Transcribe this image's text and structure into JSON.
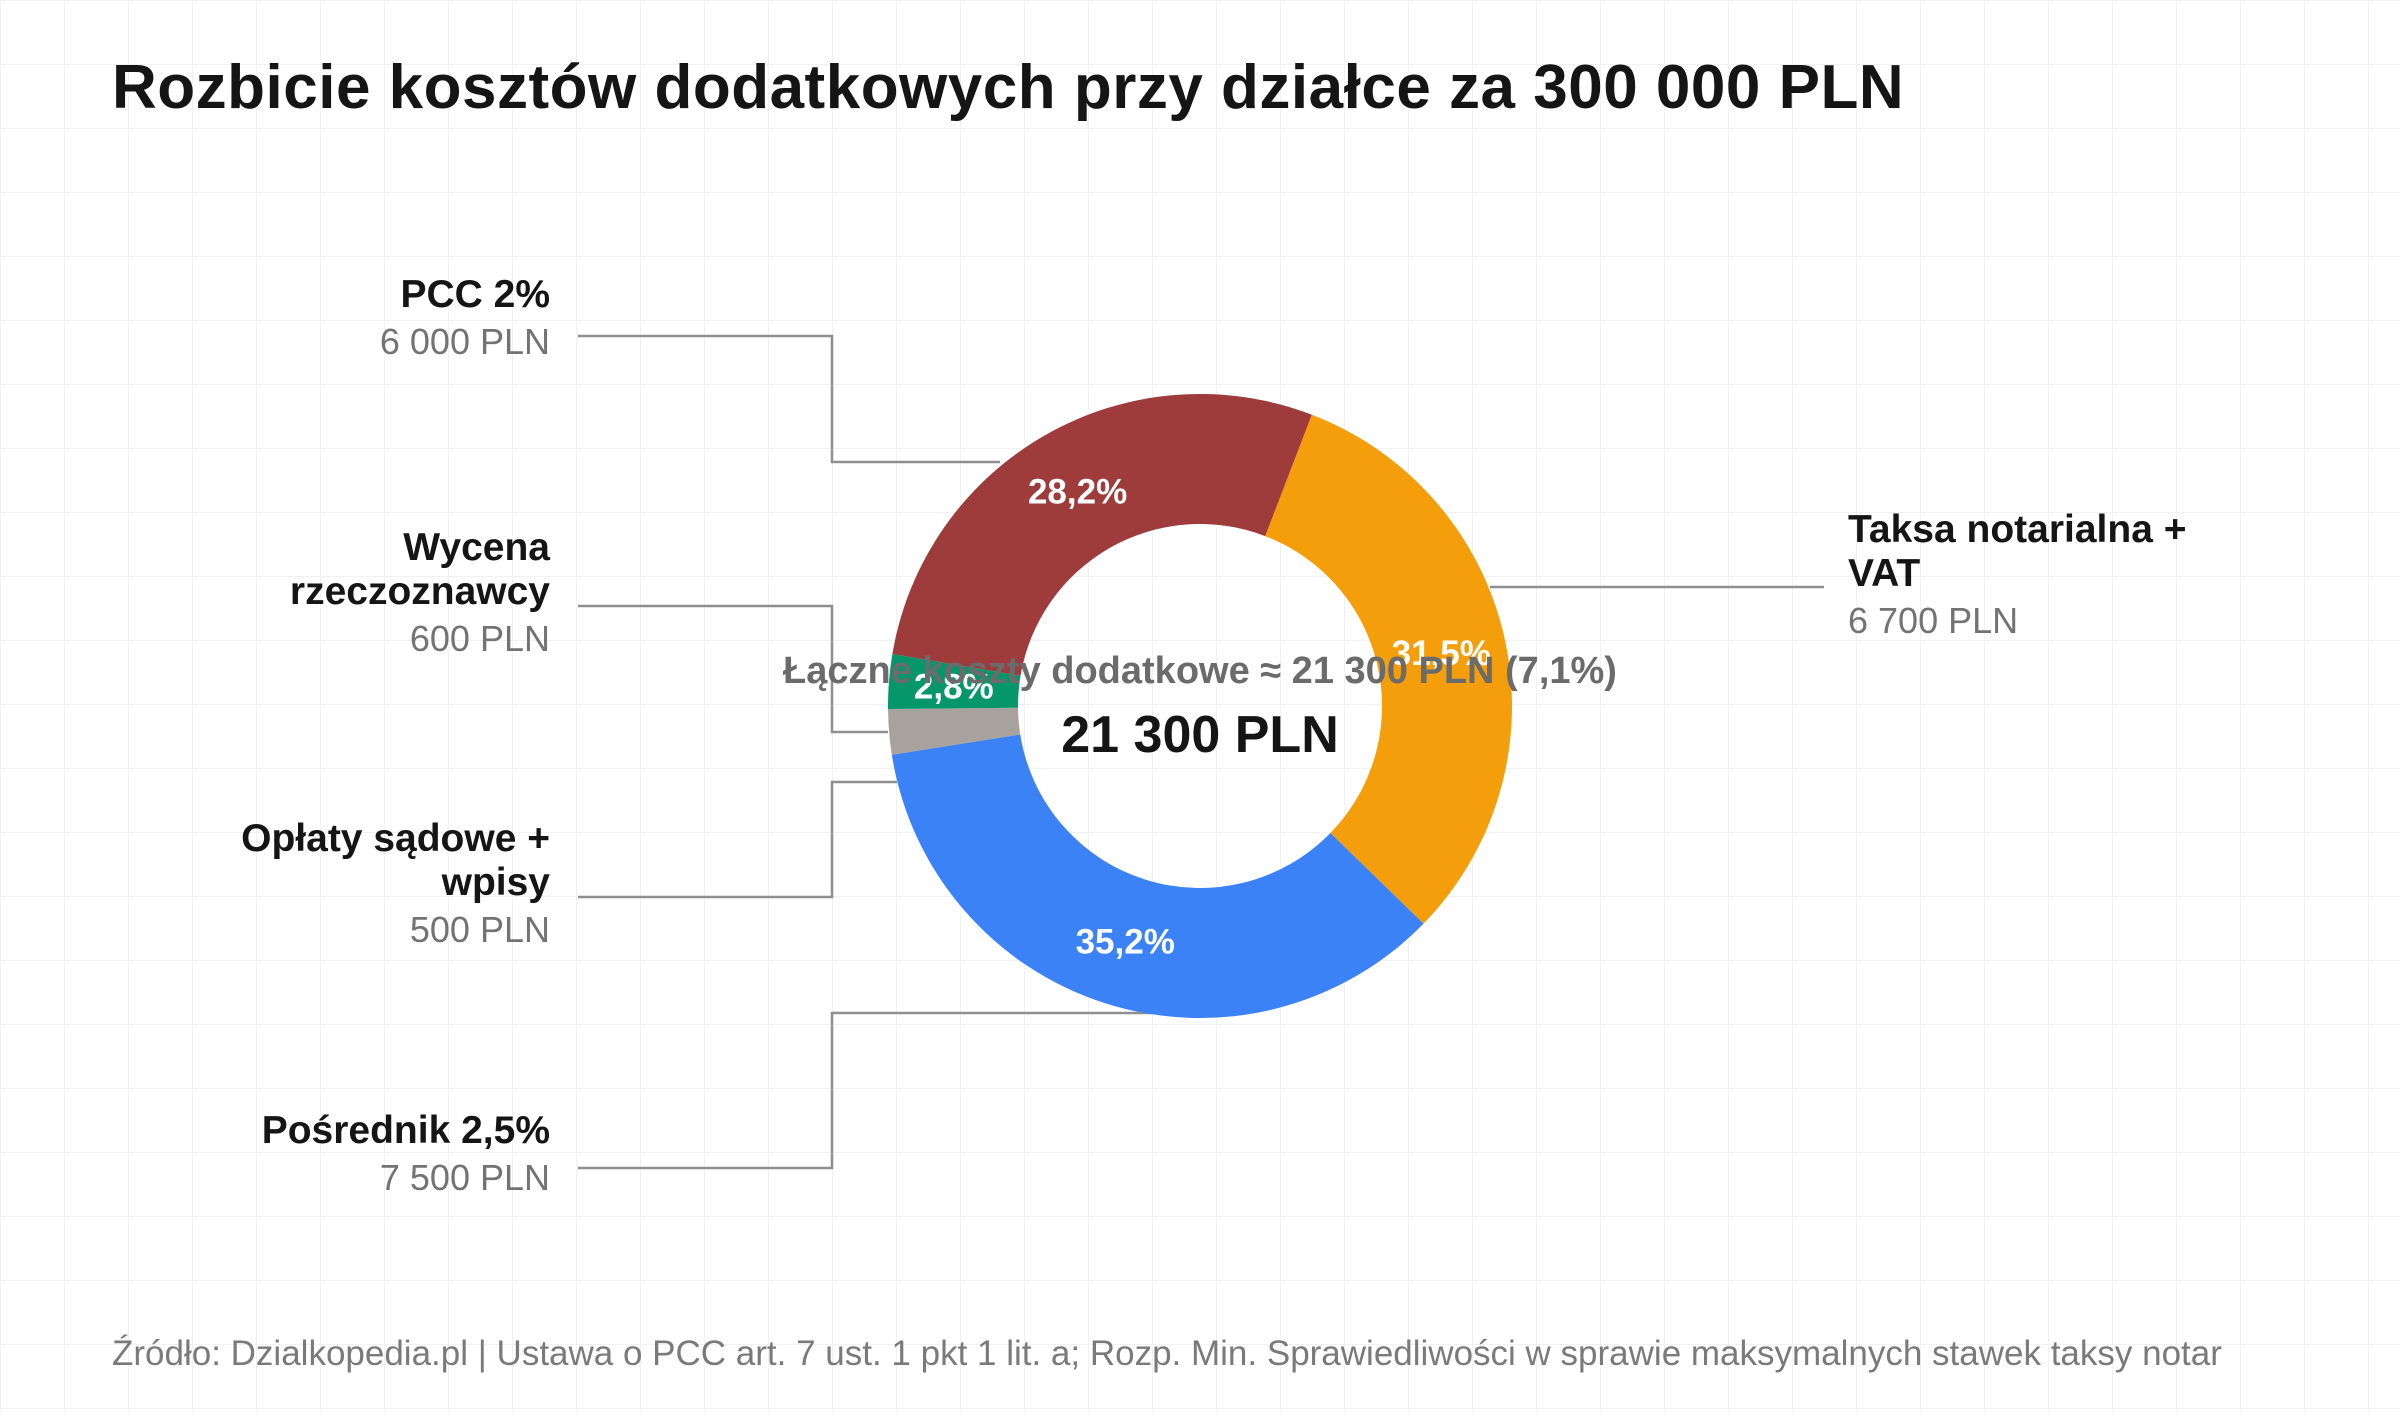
{
  "title": "Rozbicie kosztów dodatkowych przy działce za 300 000 PLN",
  "source": "Źródło: Dzialkopedia.pl | Ustawa o PCC art. 7 ust. 1 pkt 1 lit. a; Rozp. Min. Sprawiedliwości w sprawie maksymalnych stawek taksy notar",
  "chart_data": {
    "type": "pie",
    "variant": "donut",
    "total_label": "21 300 PLN",
    "overlay_note": "Łączne koszty dodatkowe ≈ 21 300 PLN (7,1%)",
    "slices": [
      {
        "name": "Taksa notarialna + VAT",
        "name_lines": [
          "Taksa notarialna +",
          "VAT"
        ],
        "value_label": "6 700 PLN",
        "value": 6700,
        "pct": 31.5,
        "pct_label": "31,5%",
        "color": "#F59E0B",
        "label_side": "right"
      },
      {
        "name": "Pośrednik 2,5%",
        "name_lines": [
          "Pośrednik 2,5%"
        ],
        "value_label": "7 500 PLN",
        "value": 7500,
        "pct": 35.2,
        "pct_label": "35,2%",
        "color": "#3B82F6",
        "label_side": "left"
      },
      {
        "name": "Opłaty sądowe + wpisy",
        "name_lines": [
          "Opłaty sądowe +",
          "wpisy"
        ],
        "value_label": "500 PLN",
        "value": 500,
        "pct": 2.3,
        "pct_label": "",
        "color": "#A8A29E",
        "label_side": "left"
      },
      {
        "name": "Wycena rzeczoznawcy",
        "name_lines": [
          "Wycena",
          "rzeczoznawcy"
        ],
        "value_label": "600 PLN",
        "value": 600,
        "pct": 2.8,
        "pct_label": "2,8%",
        "color": "#059669",
        "label_side": "left"
      },
      {
        "name": "PCC 2%",
        "name_lines": [
          "PCC 2%"
        ],
        "value_label": "6 000 PLN",
        "value": 6000,
        "pct": 28.2,
        "pct_label": "28,2%",
        "color": "#9E3B3B",
        "label_side": "left"
      }
    ]
  }
}
